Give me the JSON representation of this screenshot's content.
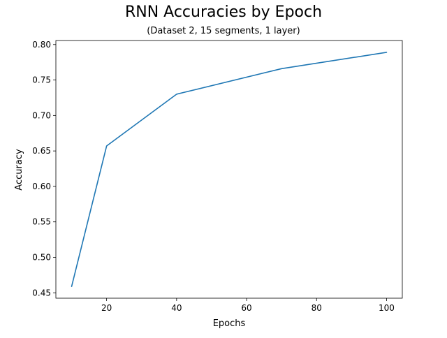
{
  "chart_data": {
    "type": "line",
    "title": "RNN Accuracies by Epoch",
    "subtitle": "(Dataset 2, 15 segments, 1 layer)",
    "xlabel": "Epochs",
    "ylabel": "Accuracy",
    "x": [
      10,
      20,
      40,
      70,
      100
    ],
    "series": [
      {
        "values": [
          0.459,
          0.657,
          0.73,
          0.766,
          0.789
        ]
      }
    ],
    "xlim": [
      5.5,
      104.5
    ],
    "ylim": [
      0.4424,
      0.8057
    ],
    "xticks": [
      20,
      40,
      60,
      80,
      100
    ],
    "xtick_labels": [
      "20",
      "40",
      "60",
      "80",
      "100"
    ],
    "yticks": [
      0.45,
      0.5,
      0.55,
      0.6,
      0.65,
      0.7,
      0.75,
      0.8
    ],
    "ytick_labels": [
      "0.45",
      "0.50",
      "0.55",
      "0.60",
      "0.65",
      "0.70",
      "0.75",
      "0.80"
    ],
    "grid": false,
    "colors": {
      "line": "#1f77b4",
      "axes": "#000000",
      "background": "#ffffff"
    }
  }
}
